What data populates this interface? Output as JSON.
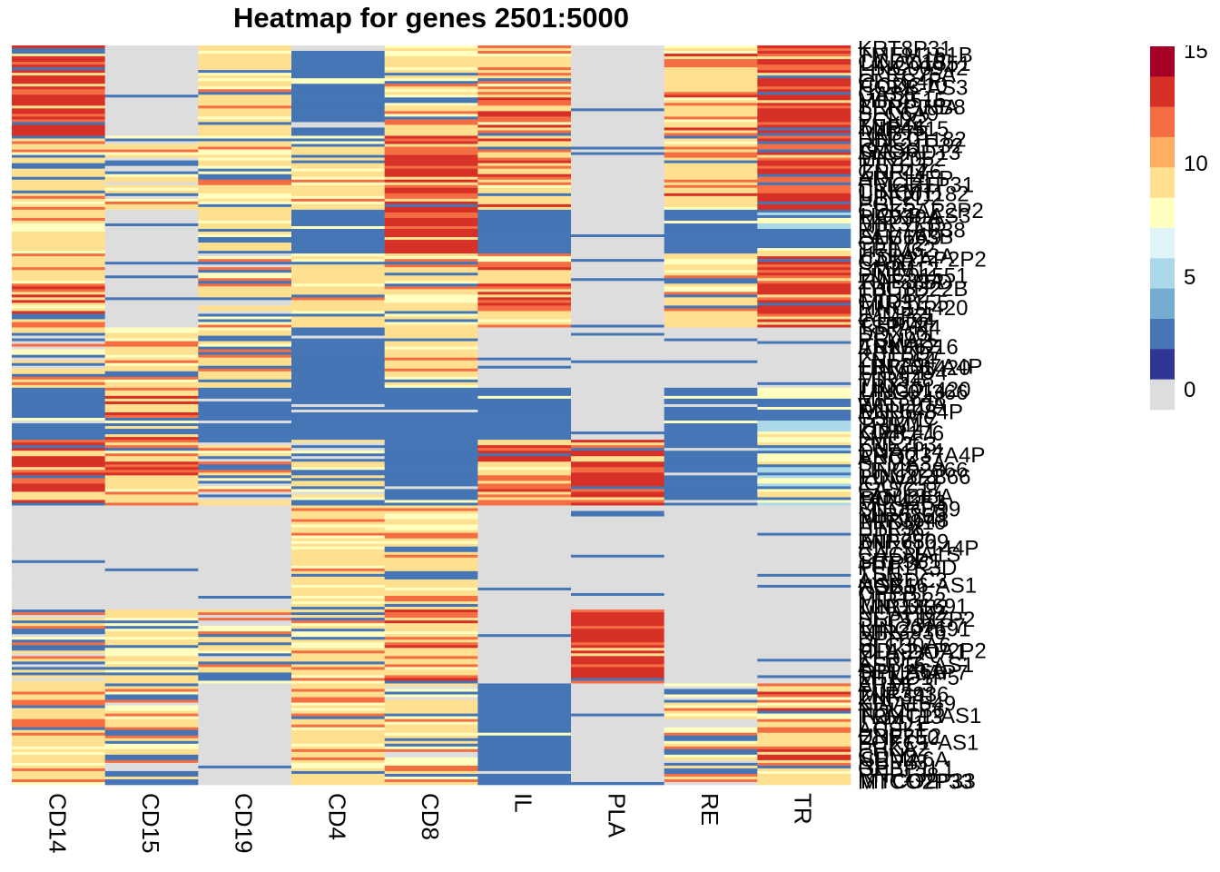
{
  "chart_data": {
    "type": "heatmap",
    "title": "Heatmap for genes 2501:5000",
    "columns": [
      "CD14",
      "CD15",
      "CD19",
      "CD4",
      "CD8",
      "IL",
      "PLA",
      "RE",
      "TR"
    ],
    "row_labels": [
      "KRT8P31",
      "TMEM161B",
      "CCDC10",
      "LINC00942",
      "LRRC75A",
      "CLEC4F",
      "HOXB-AS3",
      "GAS6",
      "MIR4515",
      "SERPINB8",
      "SLC6A9",
      "PCNX2",
      "ZNF44",
      "RAB7B",
      "LINC01182",
      "RPL21P32",
      "SNORD13",
      "MIR2052",
      "TTYH3",
      "GPR176",
      "ARL14EP",
      "HMGB1P31",
      "CSKMT",
      "UBE2D2",
      "PGLS",
      "CDK2AP2P2",
      "RAB39A",
      "MIR3155",
      "RPL7AP38",
      "FAM163B",
      "CEP72",
      "TRIM62",
      "HSPA12A",
      "CA5B",
      "SMIM12",
      "LINC01551",
      "ZNF385D",
      "TBC1D22B",
      "EPHB2",
      "CTU1",
      "LINC01420",
      "IMMP2L",
      "C1orf94",
      "TSPAN4",
      "DDX60L",
      "PSMA2",
      "ANKRD16",
      "KBTBD7",
      "ZNF564",
      "LRRC37A4P",
      "FRMPD4",
      "MIR548",
      "TBX15",
      "LINC01366",
      "MIR3648",
      "WNT10A",
      "RNU6-84P",
      "GSDMC",
      "TRIM17",
      "KLHL41",
      "LMO7",
      "ZNF263",
      "DNAH14",
      "ANO2",
      "SEMA3A",
      "LINC02866",
      "POU2F1",
      "IGLV2-8",
      "CASC17",
      "FAM138A",
      "MIR4253",
      "SNORD99",
      "MIR6869",
      "PRDM10",
      "HTR3C",
      "RPL30",
      "ZNF750",
      "RN7SL144P",
      "CACNA1S",
      "SRP9P1",
      "PPP1R3D",
      "TSN",
      "ARRDC3",
      "NOX5",
      "CPEB1",
      "MIR1322",
      "LINC01691",
      "NCAPD2",
      "SEPTIN7P2",
      "RPL23AP7",
      "MIR3936",
      "DPH7",
      "SLC30A6",
      "HLA-DQA1",
      "KLRF2",
      "ASB16-AS1",
      "SEMA6A",
      "MTND1P5",
      "ARMC3",
      "FUT7",
      "ZNF341",
      "KIAA1549",
      "NDUFB6",
      "TRMT13",
      "LYPD1",
      "ACSL1",
      "UBE2E2",
      "FOXC1-AS1",
      "PHKA2",
      "CDH9",
      "NUP43",
      "GPBP1L1",
      "RNF138",
      "MTCO2P33"
    ],
    "visible_row_labels": [
      "LINC01551",
      "CCDC10",
      "LRRC75A",
      "MIR4515",
      "GAS6",
      "ZNF44",
      "LINC01182",
      "HOXB-AS3",
      "SLC6A9",
      "CDK2AP2P2",
      "RAB39A",
      "MIR3155",
      "CEP72",
      "TRIM62",
      "LINC01420",
      "LINC01420",
      "MIR548",
      "GPR176",
      "LRRC37A4P",
      "LINC02866",
      "POU2F1",
      "MIR3648",
      "MIR6869",
      "HTR3C",
      "ASB16-AS1",
      "MIR1322",
      "LINC01691",
      "CDK2AP2P2",
      "RPL23AP7",
      "MIR3936",
      "FOXC1-AS1",
      "ZNF750",
      "SEMA6A",
      "MTCO2P33"
    ],
    "color_scale": {
      "breaks": [
        0,
        1.5,
        3,
        4.5,
        6,
        7.5,
        9,
        10.5,
        12,
        13.5,
        15
      ],
      "colors": [
        "#dddddd",
        "#313695",
        "#4575b4",
        "#74add1",
        "#abd9e9",
        "#e0f3f8",
        "#ffffbf",
        "#fee090",
        "#fdae61",
        "#f46d43",
        "#d73027",
        "#a50026"
      ],
      "legend_ticks": [
        "15",
        "10",
        "5",
        "0"
      ]
    },
    "value_min": 0,
    "value_max": 15,
    "legend": "right"
  }
}
